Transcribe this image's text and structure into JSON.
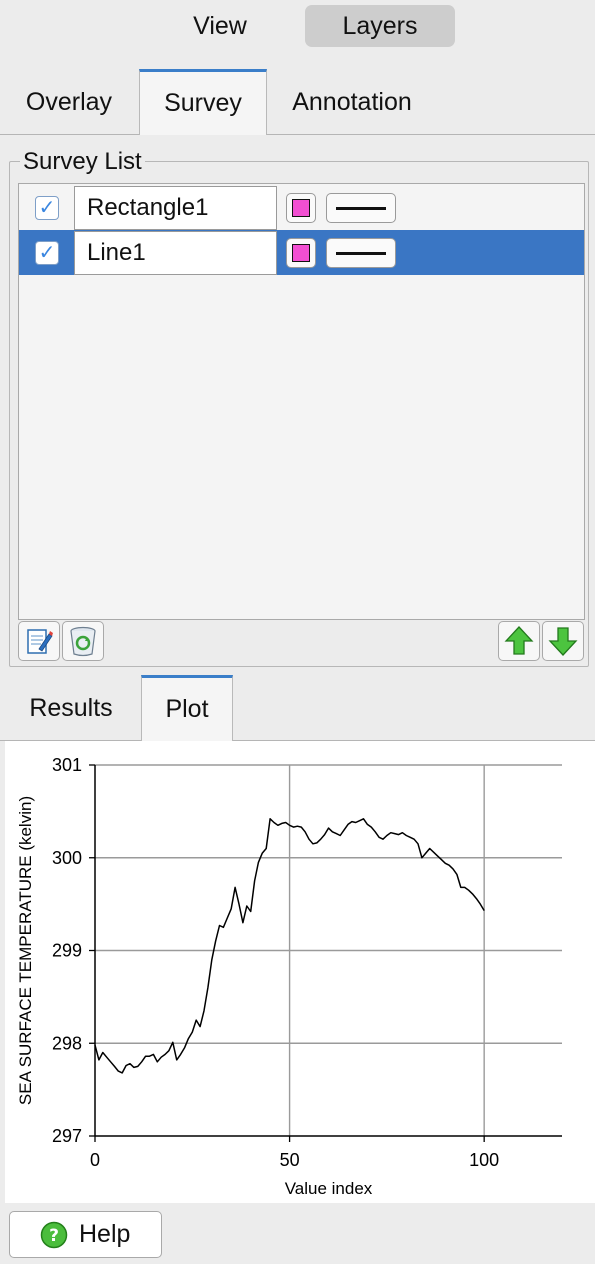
{
  "top_segments": {
    "view_label": "View",
    "layers_label": "Layers",
    "selected": "Layers"
  },
  "upper_tabs": {
    "items": [
      "Overlay",
      "Survey",
      "Annotation"
    ],
    "selected": "Survey"
  },
  "survey_list": {
    "title": "Survey List",
    "rows": [
      {
        "checked": true,
        "name": "Rectangle1",
        "color": "#f24fd2",
        "selected": false
      },
      {
        "checked": true,
        "name": "Line1",
        "color": "#f24fd2",
        "selected": true
      }
    ],
    "tools": [
      "edit-icon",
      "recycle-bin-icon",
      "move-up-icon",
      "move-down-icon"
    ]
  },
  "lower_tabs": {
    "items": [
      "Results",
      "Plot"
    ],
    "selected": "Plot"
  },
  "chart_data": {
    "type": "line",
    "xlabel": "Value index",
    "ylabel": "SEA SURFACE TEMPERATURE (kelvin)",
    "xlim": [
      0,
      120
    ],
    "ylim": [
      297,
      301
    ],
    "xticks": [
      0,
      50,
      100
    ],
    "yticks": [
      297,
      298,
      299,
      300,
      301
    ],
    "grid": true,
    "series": [
      {
        "color": "#000000",
        "x": [
          0,
          1,
          2,
          3,
          4,
          5,
          6,
          7,
          8,
          9,
          10,
          11,
          12,
          13,
          14,
          15,
          16,
          17,
          18,
          19,
          20,
          21,
          22,
          23,
          24,
          25,
          26,
          27,
          28,
          29,
          30,
          31,
          32,
          33,
          34,
          35,
          36,
          37,
          38,
          39,
          40,
          41,
          42,
          43,
          44,
          45,
          46,
          47,
          48,
          49,
          50,
          51,
          52,
          53,
          54,
          55,
          56,
          57,
          58,
          59,
          60,
          61,
          62,
          63,
          64,
          65,
          66,
          67,
          68,
          69,
          70,
          71,
          72,
          73,
          74,
          75,
          76,
          77,
          78,
          79,
          80,
          81,
          82,
          83,
          84,
          85,
          86,
          87,
          88,
          89,
          90,
          91,
          92,
          93,
          94,
          95,
          96,
          97,
          98,
          99,
          100
        ],
        "y": [
          297.98,
          297.82,
          297.9,
          297.85,
          297.8,
          297.75,
          297.7,
          297.68,
          297.76,
          297.78,
          297.74,
          297.75,
          297.8,
          297.86,
          297.86,
          297.88,
          297.8,
          297.85,
          297.88,
          297.92,
          298.01,
          297.82,
          297.88,
          297.95,
          298.05,
          298.12,
          298.25,
          298.18,
          298.35,
          298.6,
          298.9,
          299.1,
          299.27,
          299.25,
          299.35,
          299.45,
          299.68,
          299.5,
          299.3,
          299.48,
          299.42,
          299.75,
          299.95,
          300.05,
          300.1,
          300.42,
          300.38,
          300.35,
          300.37,
          300.38,
          300.35,
          300.33,
          300.34,
          300.33,
          300.28,
          300.2,
          300.15,
          300.16,
          300.2,
          300.25,
          300.32,
          300.28,
          300.26,
          300.24,
          300.3,
          300.36,
          300.39,
          300.38,
          300.4,
          300.42,
          300.36,
          300.33,
          300.28,
          300.22,
          300.2,
          300.24,
          300.27,
          300.26,
          300.25,
          300.27,
          300.24,
          300.22,
          300.2,
          300.15,
          300.0,
          300.05,
          300.1,
          300.06,
          300.02,
          299.98,
          299.94,
          299.92,
          299.88,
          299.82,
          299.68,
          299.68,
          299.65,
          299.61,
          299.56,
          299.5,
          299.43
        ]
      }
    ]
  },
  "help": {
    "label": "Help",
    "icon": "question-mark-icon"
  }
}
